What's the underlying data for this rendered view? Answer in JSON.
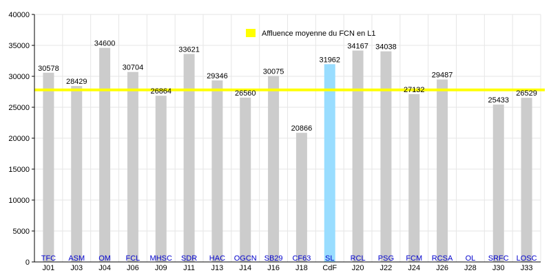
{
  "chart_data": {
    "type": "bar",
    "categories": [
      "J01",
      "J03",
      "J04",
      "J06",
      "J09",
      "J11",
      "J13",
      "J14",
      "J16",
      "J18",
      "CdF",
      "J20",
      "J22",
      "J24",
      "J26",
      "J28",
      "J30",
      "J33"
    ],
    "teams": [
      "TFC",
      "ASM",
      "OM",
      "FCL",
      "MHSC",
      "SDR",
      "HAC",
      "OGCN",
      "SB29",
      "CF63",
      "SL",
      "RCL",
      "PSG",
      "FCM",
      "RCSA",
      "OL",
      "SRFC",
      "LOSC"
    ],
    "values": [
      30578,
      28429,
      34600,
      30704,
      26864,
      33621,
      29346,
      26560,
      30075,
      20866,
      31962,
      34167,
      34038,
      27132,
      29487,
      null,
      25433,
      26529
    ],
    "value_labels": [
      "30578",
      "28429",
      "34600",
      "30704",
      "26864",
      "33621",
      "29346",
      "26560",
      "30075",
      "20866",
      "31962",
      "34167",
      "34038",
      "27132",
      "29487",
      "",
      "25433",
      "26529"
    ],
    "highlight_index": 10,
    "reference_line": {
      "value": 27800,
      "label": "Affluence moyenne du FCN en L1",
      "color": "#ffff00"
    },
    "ylim": [
      0,
      40000
    ],
    "yticks": [
      "0",
      "5000",
      "10000",
      "15000",
      "20000",
      "25000",
      "30000",
      "35000",
      "40000"
    ],
    "grid": true,
    "legend_position": "top-center",
    "colors": {
      "bar": "#cccccc",
      "highlight_bar": "#99ddff",
      "grid": "#e6e6e6",
      "axis": "#000000",
      "team_label": "#0000cc"
    }
  }
}
